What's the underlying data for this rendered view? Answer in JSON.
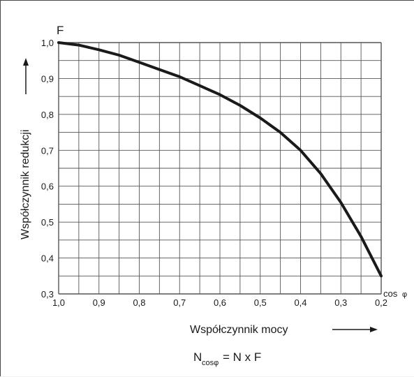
{
  "chart_data": {
    "type": "line",
    "y_axis_symbol": "F",
    "x_axis_symbol": "cos",
    "x_axis_symbol_sub": "φ",
    "ylabel": "Współczynnik redukcji",
    "xlabel": "Współczynnik mocy",
    "formula": {
      "lhs": "N",
      "lhs_sub": "cosφ",
      "rhs": "= N x F"
    },
    "xlim": [
      1.0,
      0.2
    ],
    "ylim": [
      0.3,
      1.0
    ],
    "x_reversed": true,
    "grid": true,
    "x_ticks": [
      "1,0",
      "0,9",
      "0,8",
      "0,7",
      "0,6",
      "0,5",
      "0,4",
      "0,3",
      "0,2"
    ],
    "x_tick_values": [
      1.0,
      0.9,
      0.8,
      0.7,
      0.6,
      0.5,
      0.4,
      0.3,
      0.2
    ],
    "y_ticks": [
      "0,3",
      "0,4",
      "0,5",
      "0,6",
      "0,7",
      "0,8",
      "0,9",
      "1,0"
    ],
    "y_tick_values": [
      0.3,
      0.4,
      0.5,
      0.6,
      0.7,
      0.8,
      0.9,
      1.0
    ],
    "minor_x_step": 0.05,
    "minor_y_step": 0.05,
    "series": [
      {
        "x": [
          1.0,
          0.95,
          0.9,
          0.85,
          0.8,
          0.75,
          0.7,
          0.65,
          0.6,
          0.55,
          0.5,
          0.45,
          0.4,
          0.35,
          0.3,
          0.25,
          0.2
        ],
        "y": [
          1.0,
          0.993,
          0.98,
          0.965,
          0.945,
          0.925,
          0.905,
          0.88,
          0.855,
          0.825,
          0.79,
          0.75,
          0.7,
          0.635,
          0.555,
          0.46,
          0.35
        ]
      }
    ]
  }
}
